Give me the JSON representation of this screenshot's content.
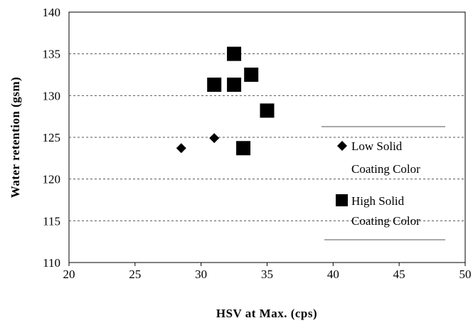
{
  "chart_data": {
    "type": "scatter",
    "title": "",
    "xlabel": "HSV at Max. (cps)",
    "ylabel": "Water retention (gsm)",
    "xlim": [
      20,
      50
    ],
    "ylim": [
      110,
      140
    ],
    "x_ticks": [
      "20",
      "25",
      "30",
      "35",
      "40",
      "45",
      "50"
    ],
    "y_ticks": [
      "110",
      "115",
      "120",
      "125",
      "130",
      "135",
      "140"
    ],
    "grid": "horizontal dashed",
    "legend_position": "right",
    "series": [
      {
        "name": "Low Solid Coating Color",
        "legend_lines": [
          "Low Solid",
          "Coating Color"
        ],
        "marker": "diamond",
        "points": [
          {
            "x": 28.5,
            "y": 123.7
          },
          {
            "x": 31.0,
            "y": 124.9
          }
        ]
      },
      {
        "name": "High Solid Coating Color",
        "legend_lines": [
          "High Solid",
          "Coating Color"
        ],
        "marker": "square",
        "points": [
          {
            "x": 32.5,
            "y": 135.0
          },
          {
            "x": 31.0,
            "y": 131.3
          },
          {
            "x": 32.5,
            "y": 131.3
          },
          {
            "x": 33.8,
            "y": 132.5
          },
          {
            "x": 35.0,
            "y": 128.2
          },
          {
            "x": 33.2,
            "y": 123.7
          }
        ]
      }
    ]
  },
  "colors": {
    "marker": "#000000",
    "grid": "#555555",
    "axis": "#000000"
  }
}
